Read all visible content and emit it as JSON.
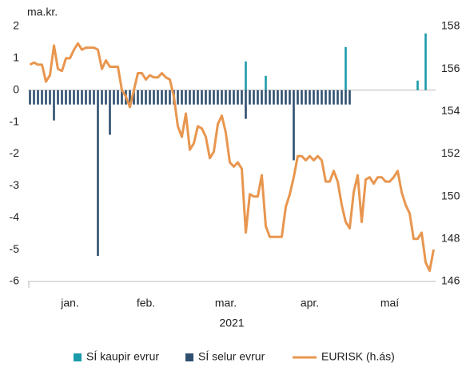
{
  "chart_data": {
    "type": "bar",
    "ylabel": "ma.kr.",
    "xlabel": "2021",
    "categories": [
      null,
      null,
      null,
      null,
      null,
      null,
      null,
      null,
      null,
      null,
      "jan.",
      null,
      null,
      null,
      null,
      null,
      null,
      null,
      null,
      null,
      null,
      null,
      null,
      null,
      null,
      null,
      null,
      null,
      null,
      "feb.",
      null,
      null,
      null,
      null,
      null,
      null,
      null,
      null,
      null,
      null,
      null,
      null,
      null,
      null,
      null,
      null,
      null,
      null,
      null,
      "mar.",
      null,
      null,
      null,
      null,
      null,
      null,
      null,
      null,
      null,
      null,
      null,
      null,
      null,
      null,
      null,
      null,
      null,
      null,
      null,
      null,
      "apr.",
      null,
      null,
      null,
      null,
      null,
      null,
      null,
      null,
      null,
      null,
      null,
      null,
      null,
      null,
      null,
      null,
      null,
      null,
      null,
      "maí",
      null,
      null,
      null,
      null,
      null,
      null,
      null,
      null,
      null,
      null,
      null
    ],
    "ylim": [
      -6,
      2
    ],
    "yticks": [
      -6,
      -5,
      -4,
      -3,
      -2,
      -1,
      0,
      1,
      2
    ],
    "y2lim": [
      146,
      158
    ],
    "y2ticks": [
      146,
      148,
      150,
      152,
      154,
      156,
      158
    ],
    "legend": "bottom",
    "series": [
      {
        "name": "SÍ kaupir evrur",
        "type": "bar",
        "color": "#1b9aaa",
        "values": [
          null,
          null,
          null,
          null,
          null,
          null,
          null,
          null,
          null,
          null,
          null,
          null,
          null,
          null,
          null,
          null,
          null,
          null,
          null,
          null,
          null,
          null,
          null,
          null,
          null,
          null,
          null,
          null,
          null,
          null,
          null,
          null,
          null,
          null,
          null,
          null,
          null,
          null,
          null,
          null,
          null,
          null,
          null,
          null,
          null,
          null,
          null,
          null,
          null,
          null,
          null,
          null,
          null,
          null,
          0.9,
          null,
          null,
          null,
          null,
          0.45,
          null,
          null,
          null,
          null,
          null,
          null,
          null,
          null,
          null,
          null,
          null,
          null,
          null,
          null,
          null,
          null,
          null,
          null,
          null,
          1.35,
          null,
          null,
          null,
          null,
          null,
          null,
          null,
          null,
          null,
          null,
          null,
          null,
          null,
          null,
          null,
          null,
          null,
          0.3,
          null,
          1.78,
          null,
          null
        ]
      },
      {
        "name": "SÍ selur evrur",
        "type": "bar",
        "color": "#2f4f6f",
        "values": [
          -0.45,
          -0.45,
          -0.45,
          -0.45,
          -0.45,
          -0.45,
          -0.95,
          -0.45,
          -0.45,
          -0.45,
          -0.45,
          -0.45,
          -0.45,
          -0.45,
          -0.45,
          -0.45,
          -0.45,
          -5.2,
          -0.45,
          -0.45,
          -1.4,
          -0.45,
          -0.45,
          -0.45,
          -0.45,
          -0.45,
          -0.45,
          -0.45,
          -0.45,
          -0.45,
          -0.45,
          -0.45,
          -0.45,
          -0.45,
          -0.45,
          -0.45,
          -0.45,
          -0.45,
          -0.45,
          -0.45,
          -0.45,
          -0.45,
          -0.45,
          -0.45,
          -0.45,
          -0.45,
          -0.45,
          -0.45,
          -0.45,
          -0.45,
          -0.45,
          -0.45,
          -0.45,
          -0.45,
          -0.9,
          -0.45,
          -0.45,
          -0.45,
          -0.45,
          -0.45,
          -0.45,
          -0.45,
          -0.45,
          -0.45,
          -0.45,
          -0.45,
          -2.2,
          -0.45,
          -0.45,
          -0.45,
          -0.45,
          -0.45,
          -0.45,
          -0.45,
          -0.45,
          -0.45,
          -0.45,
          -0.45,
          -0.45,
          -0.45,
          -0.45,
          null,
          null,
          null,
          null,
          null,
          null,
          null,
          null,
          null,
          null,
          null,
          null,
          null,
          null,
          null,
          null,
          null,
          null,
          null,
          null,
          null
        ]
      },
      {
        "name": "EURISK (h.ás)",
        "type": "line",
        "axis": "y2",
        "color": "#e8964f",
        "values": [
          156.2,
          156.3,
          156.2,
          156.2,
          155.4,
          155.7,
          157.1,
          156.0,
          155.9,
          156.5,
          156.5,
          156.9,
          157.2,
          156.9,
          157.0,
          157.0,
          157.0,
          156.9,
          156.0,
          156.4,
          156.1,
          156.1,
          156.1,
          155.0,
          154.7,
          154.2,
          155.0,
          155.8,
          155.8,
          155.5,
          155.7,
          155.6,
          155.6,
          155.8,
          155.6,
          155.5,
          154.7,
          153.3,
          152.8,
          153.9,
          152.2,
          152.5,
          153.3,
          153.2,
          152.8,
          151.8,
          152.1,
          153.4,
          153.8,
          153.0,
          151.6,
          151.4,
          151.6,
          151.3,
          148.3,
          150.1,
          150.0,
          150.0,
          151.0,
          148.6,
          148.1,
          148.1,
          148.1,
          148.1,
          149.5,
          150.1,
          150.9,
          151.9,
          151.9,
          151.7,
          151.9,
          151.7,
          151.9,
          151.7,
          150.7,
          150.7,
          151.2,
          150.7,
          149.6,
          148.8,
          148.5,
          150.2,
          151.0,
          148.8,
          150.8,
          150.9,
          150.6,
          150.9,
          150.9,
          150.7,
          150.7,
          150.9,
          151.2,
          150.2,
          149.6,
          149.2,
          148.0,
          148.0,
          148.3,
          146.9,
          146.5,
          147.5
        ]
      }
    ]
  }
}
